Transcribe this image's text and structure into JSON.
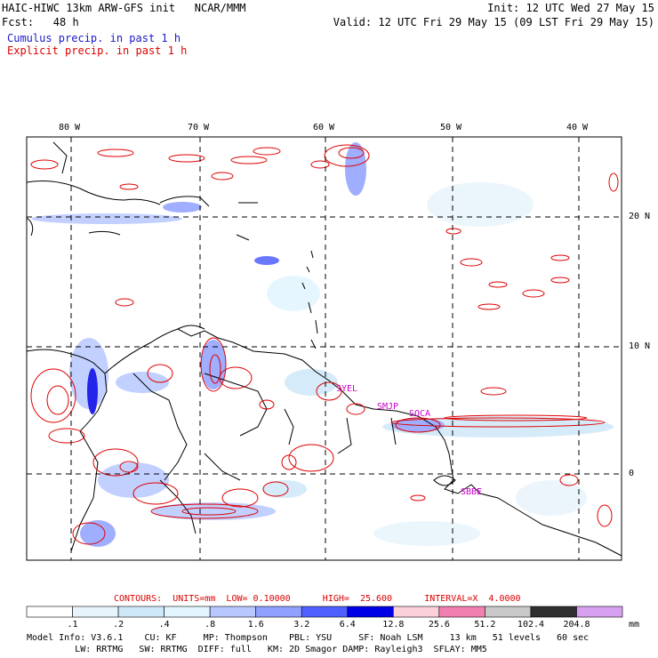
{
  "header": {
    "left_line1": "HAIC-HIWC 13km ARW-GFS init   NCAR/MMM",
    "left_line2": "Fcst:   48 h",
    "cumulus_label": "Cumulus precip. in past 1 h",
    "explicit_label": "Explicit precip. in past 1 h",
    "init": "Init: 12 UTC Wed 27 May 15",
    "valid": "Valid: 12 UTC Fri 29 May 15 (09 LST Fri 29 May 15)"
  },
  "map": {
    "lon_labels": [
      "80 W",
      "70 W",
      "60 W",
      "50 W",
      "40 W"
    ],
    "lat_labels": [
      "20 N",
      "10 N",
      "0"
    ],
    "stations": [
      "SYEL",
      "SMJP",
      "SOCA",
      "SBBE"
    ],
    "colors": {
      "coast": "#000000",
      "grid": "#000000",
      "cumulus": "#2020e0",
      "explicit": "#e00000",
      "station": "#cc00cc"
    }
  },
  "contours": {
    "label": "CONTOURS:  UNITS=mm  LOW= 0.10000      HIGH=  25.600      INTERVAL=X  4.0000"
  },
  "colorbar": {
    "ticks": [
      ".1",
      ".2",
      ".4",
      ".8",
      "1.6",
      "3.2",
      "6.4",
      "12.8",
      "25.6",
      "51.2",
      "102.4",
      "204.8"
    ],
    "unit": "mm",
    "colors": [
      "#ffffff",
      "#e8f4fb",
      "#cfe8f8",
      "#e2f5ff",
      "#b8c8ff",
      "#8fa0ff",
      "#5060ff",
      "#0000e6",
      "#fbd0d8",
      "#f080b0",
      "#c8c8c8",
      "#303030",
      "#d8a0f0"
    ]
  },
  "footer": {
    "line1": "Model Info: V3.6.1    CU: KF     MP: Thompson    PBL: YSU     SF: Noah LSM     13 km   51 levels   60 sec",
    "line2": "         LW: RRTMG   SW: RRTMG  DIFF: full   KM: 2D Smagor DAMP: Rayleigh3  SFLAY: MM5"
  }
}
